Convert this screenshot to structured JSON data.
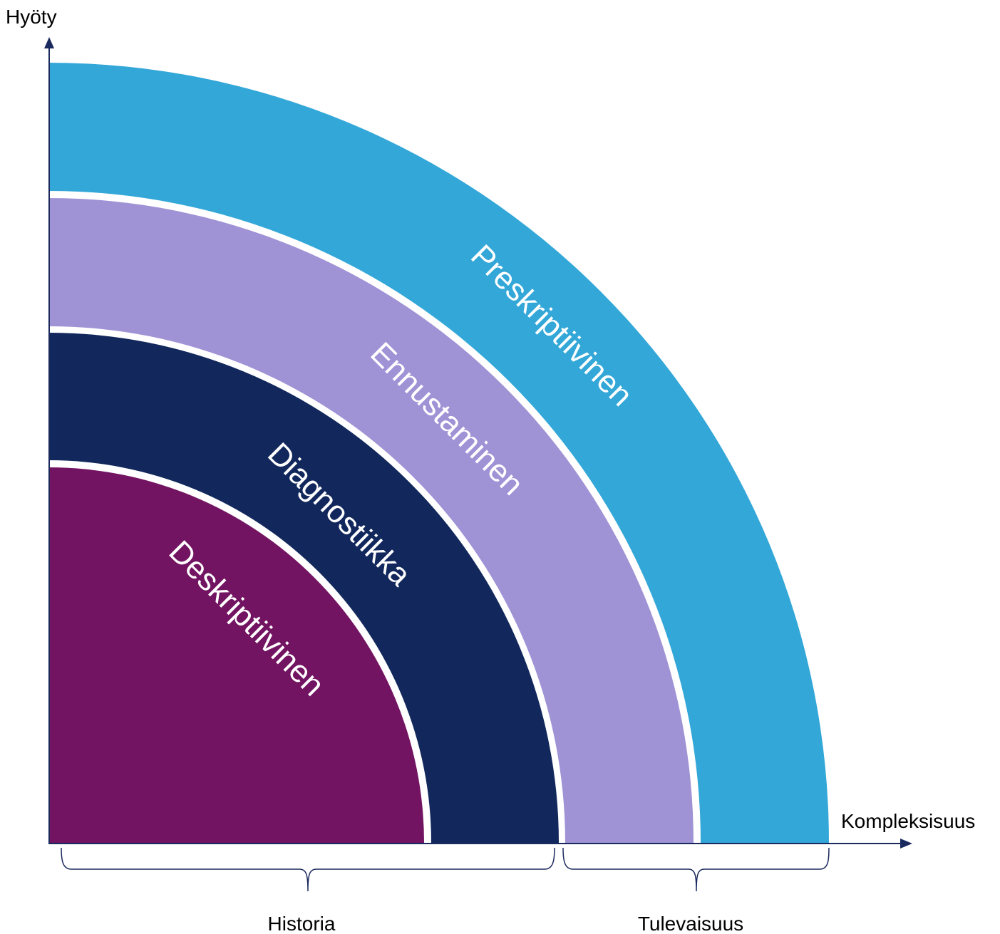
{
  "axes": {
    "y_label": "Hyöty",
    "x_label": "Kompleksisuus",
    "color": "#1b2a5e"
  },
  "bands": [
    {
      "label": "Deskriptiivinen",
      "color": "#721462"
    },
    {
      "label": "Diagnostiikka",
      "color": "#12285c"
    },
    {
      "label": "Ennustaminen",
      "color": "#9f93d6"
    },
    {
      "label": "Preskriptiivinen",
      "color": "#32a7d8"
    }
  ],
  "brackets": [
    {
      "label": "Historia"
    },
    {
      "label": "Tulevaisuus"
    }
  ]
}
